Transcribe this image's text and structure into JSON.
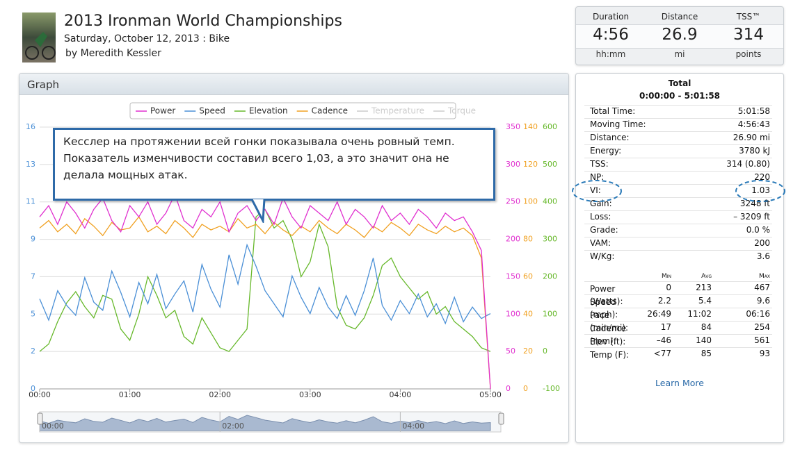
{
  "header": {
    "title": "2013 Ironman World Championships",
    "subtitle": "Saturday, October 12, 2013 : Bike",
    "author": "by Meredith Kessler"
  },
  "summary": [
    {
      "label": "Duration",
      "value": "4:56",
      "unit": "hh:mm"
    },
    {
      "label": "Distance",
      "value": "26.9",
      "unit": "mi"
    },
    {
      "label": "TSS™",
      "value": "314",
      "unit": "points"
    }
  ],
  "graph": {
    "title": "Graph",
    "callout": "Кесслер на протяжении всей гонки показывала очень ровный темп. Показатель изменчивости составил всего 1,03, а это значит она не делала мощных атак.",
    "chart_data": {
      "type": "line",
      "x": [
        0,
        6,
        12,
        18,
        24,
        30,
        36,
        42,
        48,
        54,
        60,
        66,
        72,
        78,
        84,
        90,
        96,
        102,
        108,
        114,
        120,
        126,
        132,
        138,
        144,
        150,
        156,
        162,
        168,
        174,
        180,
        186,
        192,
        198,
        204,
        210,
        216,
        222,
        228,
        234,
        240,
        246,
        252,
        258,
        264,
        270,
        276,
        282,
        288,
        294,
        300
      ],
      "xlim": [
        0,
        300
      ],
      "xticks": [
        {
          "value": 0,
          "label": "00:00"
        },
        {
          "value": 60,
          "label": "01:00"
        },
        {
          "value": 120,
          "label": "02:00"
        },
        {
          "value": 180,
          "label": "03:00"
        },
        {
          "value": 240,
          "label": "04:00"
        },
        {
          "value": 300,
          "label": "05:00"
        }
      ],
      "ylim": [
        0,
        16
      ],
      "yticks": [
        {
          "value": 0,
          "label": "0"
        },
        {
          "value": 2.286,
          "label": "2"
        },
        {
          "value": 4.571,
          "label": "5"
        },
        {
          "value": 6.857,
          "label": "7"
        },
        {
          "value": 9.143,
          "label": "9"
        },
        {
          "value": 11.429,
          "label": "11"
        },
        {
          "value": 13.714,
          "label": "13"
        },
        {
          "value": 16,
          "label": "16"
        }
      ],
      "y2lim": [
        0,
        350
      ],
      "y2ticks": [
        0,
        50,
        100,
        150,
        200,
        250,
        300,
        350
      ],
      "y3lim": [
        0,
        140
      ],
      "y3ticks": [
        0,
        20,
        40,
        60,
        80,
        100,
        120,
        140
      ],
      "y4lim": [
        -100,
        600
      ],
      "y4ticks": [
        -100,
        0,
        100,
        200,
        300,
        400,
        500,
        600
      ],
      "grid": true,
      "series": [
        {
          "name": "Power",
          "color": "#e02fcf",
          "axis": "y2",
          "values": [
            230,
            245,
            220,
            250,
            235,
            215,
            240,
            255,
            225,
            210,
            245,
            230,
            250,
            220,
            235,
            260,
            225,
            215,
            240,
            230,
            250,
            210,
            235,
            245,
            225,
            240,
            220,
            255,
            230,
            215,
            245,
            235,
            225,
            250,
            220,
            240,
            230,
            215,
            245,
            225,
            235,
            220,
            240,
            230,
            215,
            235,
            225,
            230,
            210,
            185,
            0
          ]
        },
        {
          "name": "Speed",
          "color": "#4a8fd6",
          "axis": "y",
          "values": [
            5.5,
            4.2,
            6.0,
            5.1,
            4.5,
            6.8,
            5.3,
            4.8,
            7.2,
            5.9,
            4.4,
            6.5,
            5.2,
            7.0,
            4.9,
            5.8,
            6.6,
            4.7,
            7.6,
            6.1,
            5.0,
            8.2,
            6.4,
            8.8,
            7.5,
            6.0,
            5.2,
            4.4,
            6.9,
            5.6,
            4.6,
            6.2,
            5.0,
            4.3,
            5.7,
            4.5,
            6.0,
            8.0,
            5.1,
            4.2,
            5.4,
            4.6,
            5.8,
            4.4,
            5.2,
            4.0,
            5.6,
            4.1,
            5.0,
            4.3,
            4.6
          ]
        },
        {
          "name": "Elevation",
          "color": "#66b82a",
          "axis": "y4",
          "values": [
            0,
            20,
            80,
            130,
            160,
            120,
            90,
            150,
            140,
            60,
            30,
            100,
            200,
            150,
            90,
            110,
            40,
            20,
            90,
            50,
            10,
            0,
            30,
            60,
            360,
            380,
            330,
            350,
            300,
            200,
            240,
            340,
            280,
            120,
            70,
            60,
            90,
            150,
            230,
            250,
            200,
            170,
            140,
            160,
            100,
            120,
            80,
            60,
            40,
            10,
            0
          ]
        },
        {
          "name": "Cadence",
          "color": "#f0a020",
          "axis": "y3",
          "values": [
            86,
            90,
            84,
            88,
            83,
            91,
            87,
            82,
            89,
            85,
            86,
            92,
            84,
            87,
            83,
            90,
            86,
            81,
            88,
            85,
            87,
            84,
            91,
            86,
            88,
            83,
            89,
            85,
            82,
            87,
            84,
            90,
            86,
            83,
            88,
            85,
            81,
            87,
            84,
            89,
            86,
            82,
            88,
            85,
            83,
            87,
            84,
            86,
            82,
            70,
            0
          ]
        }
      ],
      "legend_disabled": [
        "Temperature",
        "Torque"
      ]
    }
  },
  "stats": {
    "title": "Total",
    "range": "0:00:00 - 5:01:58",
    "rows": [
      [
        "Total Time:",
        "5:01:58"
      ],
      [
        "Moving Time:",
        "4:56:43"
      ],
      [
        "Distance:",
        "26.90 mi"
      ],
      [
        "Energy:",
        "3780 kJ"
      ],
      [
        "TSS:",
        "314 (0.80)"
      ],
      [
        "NP:",
        "220"
      ],
      [
        "VI:",
        "1.03"
      ],
      [
        "Gain:",
        "3248 ft"
      ],
      [
        "Loss:",
        "– 3209 ft"
      ],
      [
        "Grade:",
        "0.0 %"
      ],
      [
        "VAM:",
        "200"
      ],
      [
        "W/Kg:",
        "3.6"
      ]
    ],
    "columns": [
      "Min",
      "Avg",
      "Max"
    ],
    "minmax": [
      [
        "Power (Watts):",
        "0",
        "213",
        "467"
      ],
      [
        "Speed (mph):",
        "2.2",
        "5.4",
        "9.6"
      ],
      [
        "Pace (min/mi):",
        "26:49",
        "11:02",
        "06:16"
      ],
      [
        "Cadence (rpm):",
        "17",
        "84",
        "254"
      ],
      [
        "Elev (ft):",
        "–46",
        "140",
        "561"
      ],
      [
        "Temp (F):",
        "<77",
        "85",
        "93"
      ]
    ],
    "link": "Learn More"
  }
}
